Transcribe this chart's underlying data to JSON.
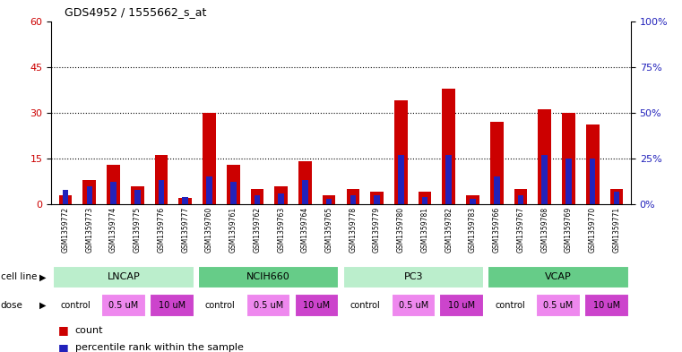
{
  "title": "GDS4952 / 1555662_s_at",
  "samples": [
    "GSM1359772",
    "GSM1359773",
    "GSM1359774",
    "GSM1359775",
    "GSM1359776",
    "GSM1359777",
    "GSM1359760",
    "GSM1359761",
    "GSM1359762",
    "GSM1359763",
    "GSM1359764",
    "GSM1359765",
    "GSM1359778",
    "GSM1359779",
    "GSM1359780",
    "GSM1359781",
    "GSM1359782",
    "GSM1359783",
    "GSM1359766",
    "GSM1359767",
    "GSM1359768",
    "GSM1359769",
    "GSM1359770",
    "GSM1359771"
  ],
  "red_values": [
    3,
    8,
    13,
    6,
    16,
    2,
    30,
    13,
    5,
    6,
    14,
    3,
    5,
    4,
    34,
    4,
    38,
    3,
    27,
    5,
    31,
    30,
    26,
    5
  ],
  "blue_values": [
    8,
    10,
    12,
    8,
    13,
    4,
    15,
    12,
    5,
    6,
    13,
    3,
    5,
    5,
    27,
    4,
    27,
    3,
    15,
    5,
    27,
    25,
    25,
    7
  ],
  "cell_line_groups": [
    {
      "label": "LNCAP",
      "start": 0,
      "end": 6,
      "color": "#bbeecc"
    },
    {
      "label": "NCIH660",
      "start": 6,
      "end": 12,
      "color": "#66cc88"
    },
    {
      "label": "PC3",
      "start": 12,
      "end": 18,
      "color": "#bbeecc"
    },
    {
      "label": "VCAP",
      "start": 18,
      "end": 24,
      "color": "#66cc88"
    }
  ],
  "dose_labels": [
    "control",
    "0.5 uM",
    "10 uM"
  ],
  "dose_colors": [
    "#ffffff",
    "#ee88ee",
    "#cc44cc"
  ],
  "ylim_left": [
    0,
    60
  ],
  "ylim_right": [
    0,
    100
  ],
  "yticks_left": [
    0,
    15,
    30,
    45,
    60
  ],
  "yticks_right": [
    0,
    25,
    50,
    75,
    100
  ],
  "ytick_labels_right": [
    "0%",
    "25%",
    "50%",
    "75%",
    "100%"
  ],
  "bar_color_red": "#cc0000",
  "bar_color_blue": "#2222bb",
  "bar_width": 0.55,
  "blue_bar_width": 0.25,
  "grid_yticks": [
    15,
    30,
    45
  ],
  "xtick_bg_color": "#cccccc",
  "plot_bg": "#ffffff",
  "legend_count": "count",
  "legend_pct": "percentile rank within the sample"
}
